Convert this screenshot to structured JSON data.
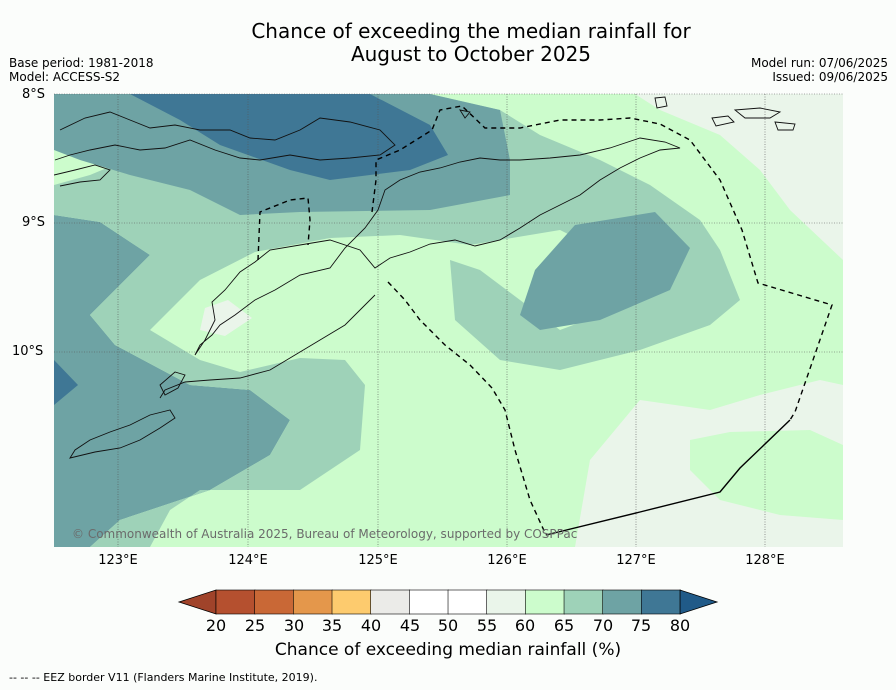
{
  "title_line1": "Chance of exceeding the median rainfall for",
  "title_line2": "August to October 2025",
  "meta_left": {
    "base_period": "Base period: 1981-2018",
    "model": "Model: ACCESS-S2"
  },
  "meta_right": {
    "model_run": "Model run: 07/06/2025",
    "issued": "Issued: 09/06/2025"
  },
  "lat_labels": [
    "8°S",
    "9°S",
    "10°S"
  ],
  "lon_labels": [
    "123°E",
    "124°E",
    "125°E",
    "126°E",
    "127°E",
    "128°E"
  ],
  "copyright": "© Commonwealth of Australia 2025, Bureau of Meteorology, supported by COSPPac",
  "colorbar": {
    "title": "Chance of exceeding median rainfall (%)",
    "labels": [
      "20",
      "25",
      "30",
      "35",
      "40",
      "45",
      "50",
      "55",
      "60",
      "65",
      "70",
      "75",
      "80"
    ],
    "colors": [
      "#a0432a",
      "#b5502f",
      "#c96836",
      "#e4974b",
      "#fdcb6e",
      "#ebebe8",
      "#ffffff",
      "#ffffff",
      "#eaf5ea",
      "#ccfccc",
      "#9ed2b8",
      "#6ea3a4",
      "#3f7795",
      "#205a88"
    ]
  },
  "footer": "--  --  -- EEZ border V11 (Flanders Marine Institute, 2019)."
}
